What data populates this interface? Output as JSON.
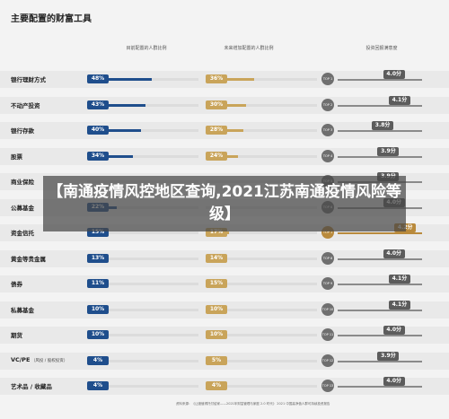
{
  "title": "主要配置的财富工具",
  "headers": {
    "current": "目前配置的人群比例",
    "future": "未来增加配置的人群比例",
    "satisfaction": "投资回报满意度"
  },
  "colors": {
    "current": "#1f4e8c",
    "future": "#c9a45a",
    "rank": "#6f6f6f",
    "highlight": "#b98a3c"
  },
  "chart_data": {
    "type": "bar",
    "categories": [
      "银行理财方式",
      "不动产投资",
      "银行存款",
      "股票",
      "商业保险",
      "公募基金",
      "资金信托",
      "黄金等贵金属",
      "债券",
      "私募基金",
      "期货",
      "VC/PE",
      "艺术品 / 收藏品"
    ],
    "category_notes": [
      "",
      "",
      "",
      "",
      "",
      "",
      "",
      "",
      "",
      "",
      "",
      "（风投 / 股权投资）",
      ""
    ],
    "series": [
      {
        "name": "目前配置的人群比例",
        "values": [
          48,
          43,
          40,
          34,
          null,
          22,
          15,
          13,
          11,
          10,
          10,
          4,
          4
        ],
        "labels": [
          "48%",
          "43%",
          "40%",
          "34%",
          "",
          "22%",
          "15%",
          "13%",
          "11%",
          "10%",
          "10%",
          "4%",
          "4%"
        ]
      },
      {
        "name": "未来增加配置的人群比例",
        "values": [
          36,
          30,
          28,
          24,
          null,
          null,
          17,
          14,
          15,
          10,
          10,
          5,
          4
        ],
        "labels": [
          "36%",
          "30%",
          "28%",
          "24%",
          "",
          "",
          "17%",
          "14%",
          "15%",
          "10%",
          "10%",
          "5%",
          "4%"
        ]
      },
      {
        "name": "投资回报满意度",
        "values": [
          4.0,
          4.1,
          3.8,
          3.9,
          3.9,
          4.0,
          4.2,
          4.0,
          4.1,
          4.1,
          4.0,
          3.9,
          4.0
        ],
        "labels": [
          "4.0分",
          "4.1分",
          "3.8分",
          "3.9分",
          "3.9分",
          "4.0分",
          "4.2分",
          "4.0分",
          "4.1分",
          "4.1分",
          "4.0分",
          "3.9分",
          "4.0分"
        ]
      }
    ],
    "rank_badge": "TOP",
    "rank_badges": [
      "1",
      "2",
      "3",
      "4",
      "5",
      "6",
      "1",
      "8",
      "9",
      "10",
      "11",
      "12",
      "13"
    ],
    "highlight_index": 6
  },
  "overlay": {
    "text": "【南通疫情风控地区查询,2021江苏南通疫情风险等级】"
  },
  "source": "资料来源：《让渡值得托付给家——2021年财富管理与家庭 2.0 时代》 2021 中国高净值人群可持续投资报告"
}
